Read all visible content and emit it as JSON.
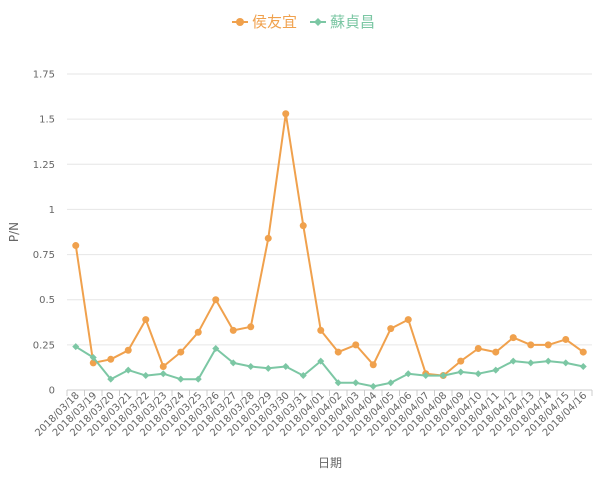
{
  "chart_data": {
    "type": "line",
    "x": [
      "2018/03/18",
      "2018/03/19",
      "2018/03/20",
      "2018/03/21",
      "2018/03/22",
      "2018/03/23",
      "2018/03/24",
      "2018/03/25",
      "2018/03/26",
      "2018/03/27",
      "2018/03/28",
      "2018/03/29",
      "2018/03/30",
      "2018/03/31",
      "2018/04/01",
      "2018/04/02",
      "2018/04/03",
      "2018/04/04",
      "2018/04/05",
      "2018/04/06",
      "2018/04/07",
      "2018/04/08",
      "2018/04/09",
      "2018/04/10",
      "2018/04/11",
      "2018/04/12",
      "2018/04/13",
      "2018/04/14",
      "2018/04/15",
      "2018/04/16"
    ],
    "series": [
      {
        "name": "侯友宜",
        "color": "#f0a14d",
        "marker": "circle",
        "values": [
          0.8,
          0.15,
          0.17,
          0.22,
          0.39,
          0.13,
          0.21,
          0.32,
          0.5,
          0.33,
          0.35,
          0.84,
          1.53,
          0.91,
          0.33,
          0.21,
          0.25,
          0.14,
          0.34,
          0.39,
          0.09,
          0.08,
          0.16,
          0.23,
          0.21,
          0.29,
          0.25,
          0.25,
          0.28,
          0.21
        ]
      },
      {
        "name": "蘇貞昌",
        "color": "#7cc7a4",
        "marker": "diamond",
        "values": [
          0.24,
          0.18,
          0.06,
          0.11,
          0.08,
          0.09,
          0.06,
          0.06,
          0.23,
          0.15,
          0.13,
          0.12,
          0.13,
          0.08,
          0.16,
          0.04,
          0.04,
          0.02,
          0.04,
          0.09,
          0.08,
          0.08,
          0.1,
          0.09,
          0.11,
          0.16,
          0.15,
          0.16,
          0.15,
          0.13
        ]
      }
    ],
    "xlabel": "日期",
    "ylabel": "P/N",
    "ylim": [
      0,
      1.75
    ],
    "yticks": [
      {
        "value": 0,
        "label": "0"
      },
      {
        "value": 0.25,
        "label": "0.25"
      },
      {
        "value": 0.5,
        "label": "0.5"
      },
      {
        "value": 0.75,
        "label": "0.75"
      },
      {
        "value": 1,
        "label": "1"
      },
      {
        "value": 1.25,
        "label": "1.25"
      },
      {
        "value": 1.5,
        "label": "1.5"
      },
      {
        "value": 1.75,
        "label": "1.75"
      }
    ],
    "grid": true,
    "legend_position": "top-center"
  }
}
